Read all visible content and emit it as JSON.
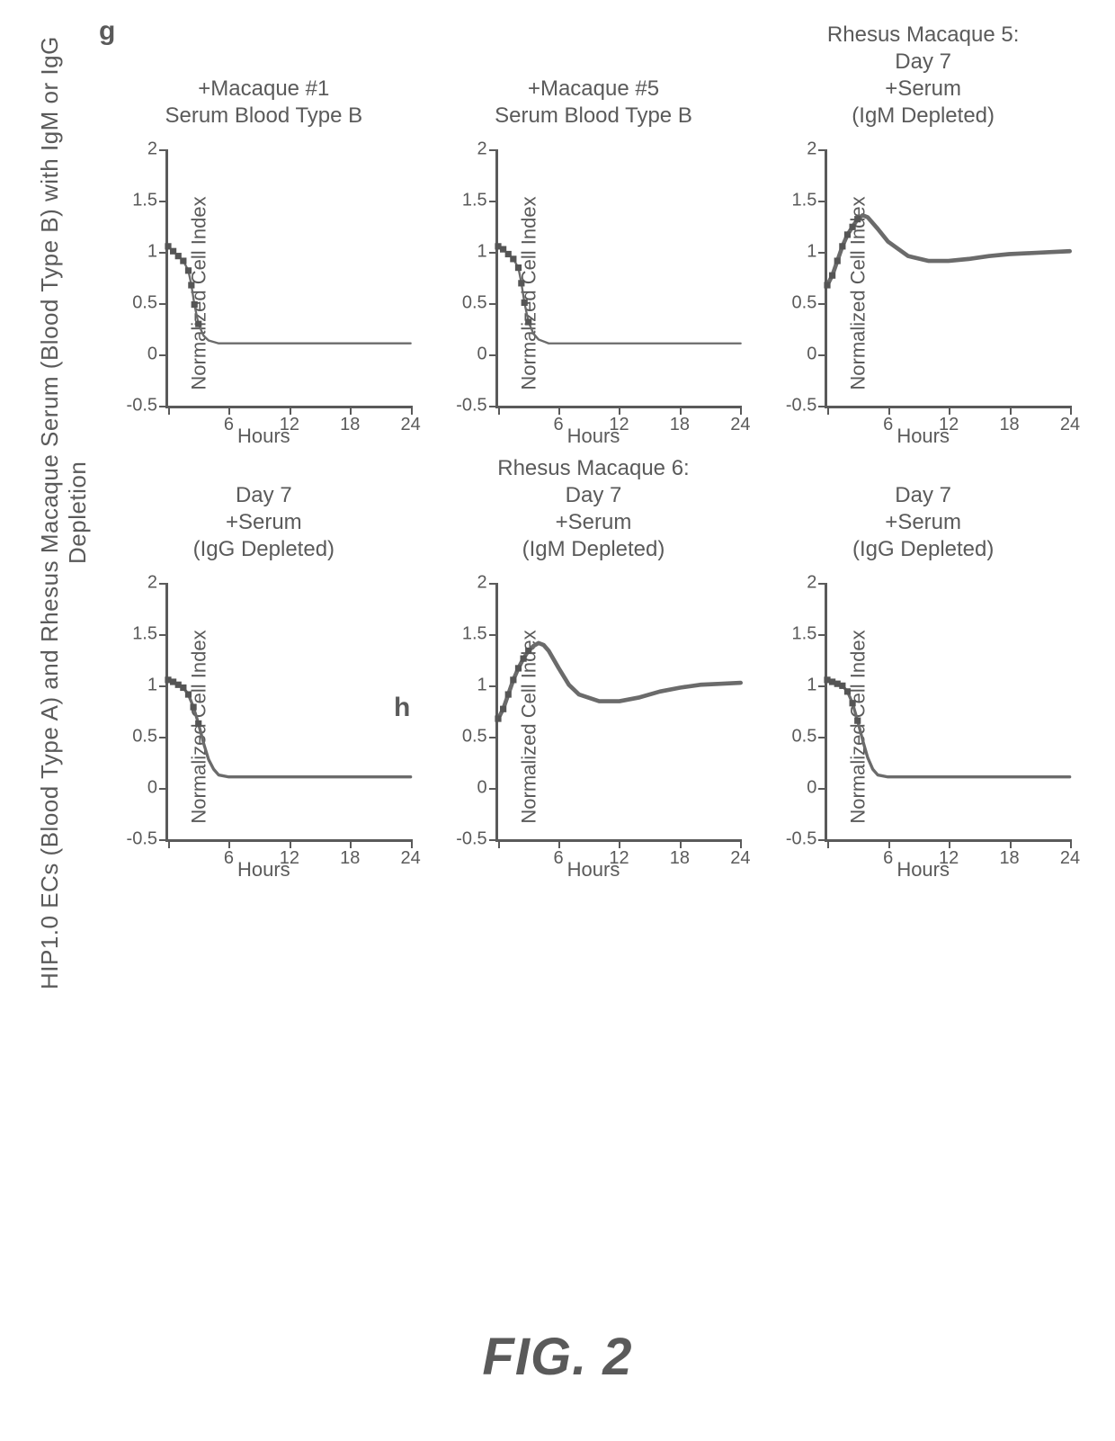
{
  "page": {
    "title": "HIP1.0 ECs (Blood Type A) and Rhesus Macaque Serum (Blood Type B) with IgM or IgG Depletion",
    "figure_label": "FIG. 2",
    "title_fontsize": 26,
    "figlabel_fontsize": 58,
    "background_color": "#ffffff",
    "text_color": "#5a5a5a"
  },
  "panel_letters": {
    "g": "g",
    "h": "h"
  },
  "shared_axes": {
    "xlabel": "Hours",
    "ylabel": "Normalized Cell Index",
    "xlim": [
      0,
      24
    ],
    "ylim": [
      -0.5,
      2
    ],
    "xticks": [
      0,
      6,
      12,
      18,
      24
    ],
    "yticks": [
      -0.5,
      0,
      0.5,
      1,
      1.5,
      2
    ],
    "xtick_labels": [
      "",
      "6",
      "12",
      "18",
      "24"
    ],
    "ytick_labels": [
      "-0.5",
      "0",
      "0.5",
      "1",
      "1.5",
      "2"
    ],
    "axis_color": "#5a5a5a",
    "tick_fontsize": 20,
    "label_fontsize": 22
  },
  "panels": [
    {
      "id": "g1",
      "title_lines": [
        "+Macaque #1",
        "Serum Blood Type B"
      ],
      "trace": {
        "x": [
          0,
          0.5,
          1,
          1.5,
          2,
          2.3,
          2.6,
          3,
          3.5,
          4,
          5,
          6,
          8,
          10,
          12,
          16,
          20,
          24
        ],
        "y": [
          1,
          0.95,
          0.9,
          0.85,
          0.75,
          0.6,
          0.4,
          0.2,
          0.08,
          0.03,
          0,
          0,
          0,
          0,
          0,
          0,
          0,
          0
        ],
        "stroke_color": "#6b6b6b",
        "stroke_width": 7,
        "marker_upto_x": 3.0,
        "marker_size": 8,
        "marker_color": "#555555"
      }
    },
    {
      "id": "g2",
      "title_lines": [
        "+Macaque #5",
        "Serum Blood Type B"
      ],
      "trace": {
        "x": [
          0,
          0.5,
          1,
          1.5,
          2,
          2.3,
          2.6,
          3,
          3.5,
          4,
          5,
          6,
          8,
          10,
          12,
          16,
          20,
          24
        ],
        "y": [
          1,
          0.97,
          0.92,
          0.87,
          0.78,
          0.62,
          0.42,
          0.22,
          0.1,
          0.04,
          0,
          0,
          0,
          0,
          0,
          0,
          0,
          0
        ],
        "stroke_color": "#6b6b6b",
        "stroke_width": 7,
        "marker_upto_x": 3.0,
        "marker_size": 8,
        "marker_color": "#555555"
      }
    },
    {
      "id": "g3",
      "section_title": "Rhesus Macaque 5:",
      "title_lines": [
        "Day 7",
        "+Serum",
        "(IgM Depleted)"
      ],
      "trace": {
        "x": [
          0,
          0.5,
          1,
          1.5,
          2,
          2.5,
          3,
          3.5,
          4,
          5,
          6,
          8,
          10,
          12,
          14,
          16,
          18,
          20,
          22,
          24
        ],
        "y": [
          0.6,
          0.7,
          0.85,
          1.0,
          1.12,
          1.2,
          1.28,
          1.32,
          1.3,
          1.18,
          1.05,
          0.9,
          0.85,
          0.85,
          0.87,
          0.9,
          0.92,
          0.93,
          0.94,
          0.95
        ],
        "stroke_color": "#6b6b6b",
        "stroke_width": 14,
        "marker_upto_x": 3.0,
        "marker_size": 8,
        "marker_color": "#555555"
      }
    },
    {
      "id": "g4",
      "title_lines": [
        "Day 7",
        "+Serum",
        "(IgG Depleted)"
      ],
      "trace": {
        "x": [
          0,
          0.5,
          1,
          1.5,
          2,
          2.5,
          3,
          3.5,
          4,
          4.5,
          5,
          6,
          8,
          10,
          12,
          16,
          20,
          24
        ],
        "y": [
          1,
          0.98,
          0.95,
          0.92,
          0.85,
          0.72,
          0.55,
          0.35,
          0.18,
          0.08,
          0.02,
          0,
          0,
          0,
          0,
          0,
          0,
          0
        ],
        "stroke_color": "#6b6b6b",
        "stroke_width": 10,
        "marker_upto_x": 3.0,
        "marker_size": 8,
        "marker_color": "#555555"
      }
    },
    {
      "id": "h1",
      "section_title": "Rhesus Macaque 6:",
      "title_lines": [
        "Day 7",
        "+Serum",
        "(IgM Depleted)"
      ],
      "trace": {
        "x": [
          0,
          0.5,
          1,
          1.5,
          2,
          2.5,
          3,
          3.5,
          4,
          4.5,
          5,
          6,
          7,
          8,
          10,
          12,
          14,
          16,
          18,
          20,
          22,
          24
        ],
        "y": [
          0.6,
          0.7,
          0.85,
          1.0,
          1.12,
          1.22,
          1.3,
          1.35,
          1.38,
          1.36,
          1.3,
          1.12,
          0.95,
          0.85,
          0.78,
          0.78,
          0.82,
          0.88,
          0.92,
          0.95,
          0.96,
          0.97
        ],
        "stroke_color": "#6b6b6b",
        "stroke_width": 14,
        "marker_upto_x": 3.0,
        "marker_size": 8,
        "marker_color": "#555555"
      }
    },
    {
      "id": "h2",
      "title_lines": [
        "Day 7",
        "+Serum",
        "(IgG Depleted)"
      ],
      "trace": {
        "x": [
          0,
          0.5,
          1,
          1.5,
          2,
          2.5,
          3,
          3.5,
          4,
          4.5,
          5,
          6,
          8,
          10,
          12,
          16,
          20,
          24
        ],
        "y": [
          1,
          0.98,
          0.96,
          0.94,
          0.88,
          0.76,
          0.58,
          0.38,
          0.2,
          0.08,
          0.02,
          0,
          0,
          0,
          0,
          0,
          0,
          0
        ],
        "stroke_color": "#6b6b6b",
        "stroke_width": 10,
        "marker_upto_x": 3.0,
        "marker_size": 8,
        "marker_color": "#555555"
      }
    }
  ]
}
